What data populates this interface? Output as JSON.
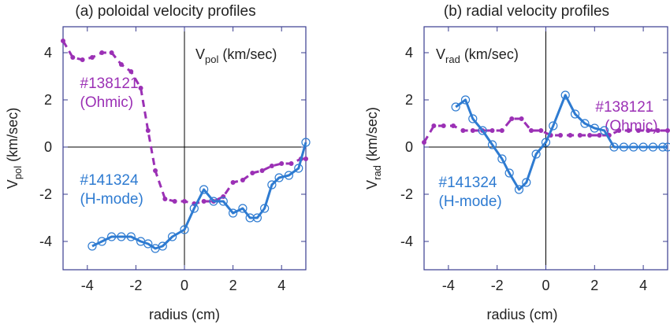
{
  "colors": {
    "ohmic": "#9b30b5",
    "hmode": "#2e7bd1",
    "axis": "#3a3d8f",
    "text": "#222222"
  },
  "chart_data": [
    {
      "type": "line",
      "title": "(a) poloidal velocity profiles",
      "xlabel": "radius (cm)",
      "ylabel": {
        "main": "V",
        "sub": "pol",
        "unit": " (km/sec)"
      },
      "quantity_label": {
        "main": "V",
        "sub": "pol",
        "unit": " (km/sec)"
      },
      "xlim": [
        -5,
        5
      ],
      "ylim": [
        -5.2,
        5.1
      ],
      "xticks": [
        -4,
        -2,
        0,
        2,
        4
      ],
      "yticks": [
        -4,
        -2,
        0,
        2,
        4
      ],
      "series": [
        {
          "name": "#138121 (Ohmic)",
          "label_line1": "#138121",
          "label_line2": "(Ohmic)",
          "style": "dashed",
          "marker": "dot",
          "x": [
            -5.0,
            -4.6,
            -4.2,
            -3.8,
            -3.4,
            -3.0,
            -2.6,
            -2.2,
            -1.8,
            -1.5,
            -1.2,
            -0.8,
            -0.4,
            0.0,
            0.4,
            0.8,
            1.2,
            1.6,
            2.0,
            2.4,
            2.8,
            3.2,
            3.6,
            4.0,
            4.4,
            4.8,
            5.0
          ],
          "y": [
            4.5,
            3.8,
            3.7,
            3.8,
            4.0,
            4.0,
            3.5,
            3.2,
            2.5,
            0.7,
            -1.0,
            -2.2,
            -2.3,
            -2.3,
            -2.4,
            -2.3,
            -2.3,
            -2.1,
            -1.5,
            -1.4,
            -1.1,
            -1.0,
            -0.8,
            -0.7,
            -0.7,
            -0.5,
            -0.5
          ],
          "label_pos": {
            "x": -4.3,
            "y": 2.5
          }
        },
        {
          "name": "#141324 (H-mode)",
          "label_line1": "#141324",
          "label_line2": "(H-mode)",
          "style": "solid",
          "marker": "circle",
          "x": [
            -3.8,
            -3.4,
            -3.0,
            -2.6,
            -2.2,
            -1.8,
            -1.5,
            -1.2,
            -0.9,
            -0.5,
            0.0,
            0.4,
            0.8,
            1.2,
            1.6,
            2.0,
            2.4,
            2.7,
            3.0,
            3.3,
            3.6,
            3.9,
            4.3,
            4.7,
            5.0
          ],
          "y": [
            -4.2,
            -4.0,
            -3.8,
            -3.8,
            -3.8,
            -4.0,
            -4.1,
            -4.3,
            -4.2,
            -3.8,
            -3.5,
            -2.6,
            -1.8,
            -2.3,
            -2.3,
            -2.8,
            -2.6,
            -3.0,
            -3.0,
            -2.6,
            -1.6,
            -1.3,
            -1.2,
            -0.9,
            0.2
          ],
          "label_pos": {
            "x": -4.3,
            "y": -1.6
          }
        }
      ]
    },
    {
      "type": "line",
      "title": "(b)  radial velocity profiles",
      "xlabel": "radius (cm)",
      "ylabel": {
        "main": "V",
        "sub": "rad",
        "unit": " (km/sec)"
      },
      "quantity_label": {
        "main": "V",
        "sub": "rad",
        "unit": " (km/sec)"
      },
      "xlim": [
        -5,
        5
      ],
      "ylim": [
        -5.2,
        5.1
      ],
      "xticks": [
        -4,
        -2,
        0,
        2,
        4
      ],
      "yticks": [
        -4,
        -2,
        0,
        2,
        4
      ],
      "series": [
        {
          "name": "#138121 (Ohmic)",
          "label_line1": "#138121",
          "label_line2": "(Ohmic)",
          "style": "dashed",
          "marker": "dot",
          "x": [
            -5.0,
            -4.6,
            -4.2,
            -3.8,
            -3.4,
            -3.0,
            -2.6,
            -2.2,
            -1.8,
            -1.4,
            -1.0,
            -0.6,
            -0.2,
            0.2,
            0.6,
            1.0,
            1.4,
            1.8,
            2.2,
            2.6,
            3.0,
            3.4,
            3.8,
            4.2,
            4.6,
            5.0
          ],
          "y": [
            0.2,
            0.9,
            0.9,
            0.9,
            0.7,
            0.7,
            0.7,
            0.7,
            0.7,
            1.2,
            1.2,
            0.7,
            0.7,
            0.5,
            0.5,
            0.5,
            0.5,
            0.5,
            0.5,
            0.5,
            0.7,
            0.7,
            0.7,
            0.7,
            0.7,
            0.7
          ],
          "label_pos": {
            "x": 4.6,
            "y": 1.5
          }
        },
        {
          "name": "#141324 (H-mode)",
          "label_line1": "#141324",
          "label_line2": "(H-mode)",
          "style": "solid",
          "marker": "circle",
          "x": [
            -3.7,
            -3.3,
            -3.0,
            -2.6,
            -2.2,
            -1.8,
            -1.5,
            -1.1,
            -0.8,
            -0.4,
            0.0,
            0.3,
            0.8,
            1.2,
            1.6,
            2.0,
            2.4,
            2.8,
            3.2,
            3.6,
            4.0,
            4.4,
            4.8,
            5.0
          ],
          "y": [
            1.7,
            2.0,
            1.2,
            0.7,
            0.1,
            -0.5,
            -1.1,
            -1.8,
            -1.5,
            -0.3,
            0.2,
            0.9,
            2.2,
            1.4,
            1.0,
            0.8,
            0.7,
            0.0,
            0.0,
            0.0,
            0.0,
            0.0,
            0.0,
            0.0
          ],
          "label_pos": {
            "x": -4.4,
            "y": -1.7
          }
        }
      ]
    }
  ]
}
